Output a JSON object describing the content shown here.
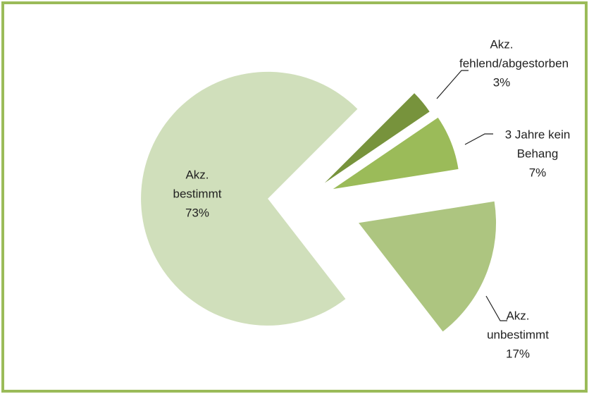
{
  "chart_data": {
    "type": "pie",
    "categories": [
      "Akz. fehlend/abgestorben",
      "3 Jahre kein Behang",
      "Akz. unbestimmt",
      "Akz. bestimmt"
    ],
    "values": [
      3,
      7,
      17,
      73
    ],
    "value_labels": [
      "3%",
      "7%",
      "17%",
      "73%"
    ],
    "colors": [
      "#77933c",
      "#9bbb59",
      "#adc580",
      "#d0dfbb"
    ]
  }
}
